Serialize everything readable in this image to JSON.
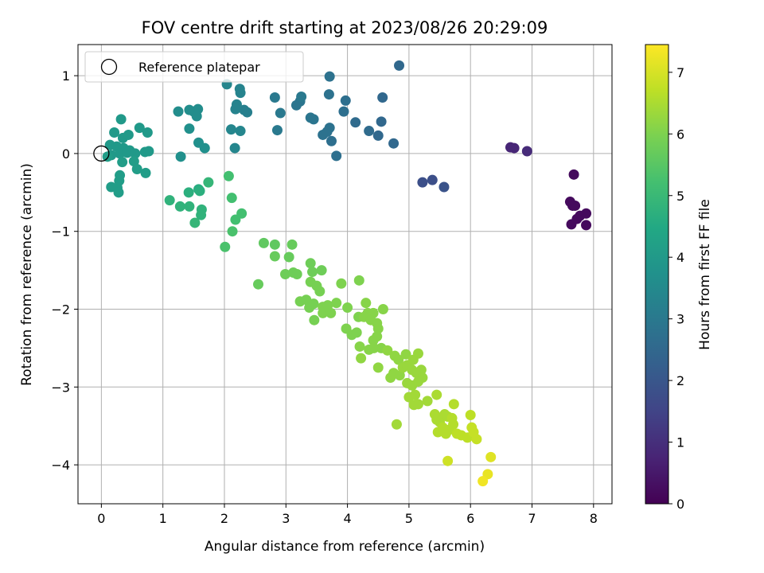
{
  "chart_data": {
    "type": "scatter",
    "title": "FOV centre drift starting at 2023/08/26 20:29:09",
    "xlabel": "Angular distance from reference (arcmin)",
    "ylabel": "Rotation from reference (arcmin)",
    "xlim": [
      -0.38,
      8.3
    ],
    "ylim": [
      -4.5,
      1.4
    ],
    "xticks": [
      0,
      1,
      2,
      3,
      4,
      5,
      6,
      7,
      8
    ],
    "yticks": [
      -4,
      -3,
      -2,
      -1,
      0,
      1
    ],
    "grid": true,
    "legend": {
      "placement": "top-left",
      "entries": [
        "Reference platepar"
      ]
    },
    "reference_point": {
      "x": 0,
      "y": 0
    },
    "colorbar": {
      "label": "Hours from first FF file",
      "colormap": "viridis",
      "range": [
        0,
        7.45
      ],
      "ticks": [
        0,
        1,
        2,
        3,
        4,
        5,
        6,
        7
      ]
    },
    "points": [
      {
        "x": 7.68,
        "y": -0.27,
        "c": 0.2
      },
      {
        "x": 7.62,
        "y": -0.62,
        "c": 0.2
      },
      {
        "x": 7.66,
        "y": -0.67,
        "c": 0.2
      },
      {
        "x": 7.7,
        "y": -0.67,
        "c": 0.2
      },
      {
        "x": 7.64,
        "y": -0.91,
        "c": 0.2
      },
      {
        "x": 7.78,
        "y": -0.8,
        "c": 0.2
      },
      {
        "x": 7.88,
        "y": -0.77,
        "c": 0.2
      },
      {
        "x": 7.73,
        "y": -0.84,
        "c": 0.2
      },
      {
        "x": 7.88,
        "y": -0.92,
        "c": 0.2
      },
      {
        "x": 6.65,
        "y": 0.08,
        "c": 0.8
      },
      {
        "x": 6.71,
        "y": 0.07,
        "c": 0.8
      },
      {
        "x": 6.92,
        "y": 0.03,
        "c": 0.9
      },
      {
        "x": 5.22,
        "y": -0.37,
        "c": 1.8
      },
      {
        "x": 5.38,
        "y": -0.34,
        "c": 1.8
      },
      {
        "x": 5.57,
        "y": -0.43,
        "c": 1.9
      },
      {
        "x": 4.84,
        "y": 1.13,
        "c": 2.5
      },
      {
        "x": 4.57,
        "y": 0.72,
        "c": 2.5
      },
      {
        "x": 4.55,
        "y": 0.41,
        "c": 2.5
      },
      {
        "x": 4.5,
        "y": 0.23,
        "c": 2.5
      },
      {
        "x": 4.75,
        "y": 0.13,
        "c": 2.5
      },
      {
        "x": 4.35,
        "y": 0.29,
        "c": 2.6
      },
      {
        "x": 4.13,
        "y": 0.4,
        "c": 2.6
      },
      {
        "x": 3.97,
        "y": 0.68,
        "c": 2.7
      },
      {
        "x": 3.94,
        "y": 0.54,
        "c": 2.7
      },
      {
        "x": 3.82,
        "y": -0.03,
        "c": 2.7
      },
      {
        "x": 3.74,
        "y": 0.16,
        "c": 2.7
      },
      {
        "x": 3.71,
        "y": 0.33,
        "c": 2.8
      },
      {
        "x": 3.7,
        "y": 0.76,
        "c": 2.8
      },
      {
        "x": 3.71,
        "y": 0.99,
        "c": 2.8
      },
      {
        "x": 3.6,
        "y": 0.24,
        "c": 2.8
      },
      {
        "x": 3.67,
        "y": 0.28,
        "c": 2.8
      },
      {
        "x": 3.45,
        "y": 0.44,
        "c": 2.9
      },
      {
        "x": 3.4,
        "y": 0.46,
        "c": 2.9
      },
      {
        "x": 3.23,
        "y": 0.67,
        "c": 2.9
      },
      {
        "x": 3.17,
        "y": 0.62,
        "c": 2.9
      },
      {
        "x": 3.25,
        "y": 0.73,
        "c": 3.0
      },
      {
        "x": 2.91,
        "y": 0.52,
        "c": 3.0
      },
      {
        "x": 2.86,
        "y": 0.3,
        "c": 3.0
      },
      {
        "x": 2.82,
        "y": 0.72,
        "c": 3.0
      },
      {
        "x": 2.37,
        "y": 0.53,
        "c": 3.2
      },
      {
        "x": 2.32,
        "y": 0.56,
        "c": 3.2
      },
      {
        "x": 2.25,
        "y": 0.83,
        "c": 3.3
      },
      {
        "x": 2.26,
        "y": 0.78,
        "c": 3.3
      },
      {
        "x": 2.2,
        "y": 0.63,
        "c": 3.3
      },
      {
        "x": 2.18,
        "y": 0.57,
        "c": 3.3
      },
      {
        "x": 2.26,
        "y": 0.29,
        "c": 3.4
      },
      {
        "x": 2.11,
        "y": 0.31,
        "c": 3.4
      },
      {
        "x": 2.17,
        "y": 0.07,
        "c": 3.4
      },
      {
        "x": 2.04,
        "y": 0.89,
        "c": 3.4
      },
      {
        "x": 1.57,
        "y": 0.57,
        "c": 3.6
      },
      {
        "x": 1.5,
        "y": 0.54,
        "c": 3.6
      },
      {
        "x": 1.43,
        "y": 0.56,
        "c": 3.6
      },
      {
        "x": 1.55,
        "y": 0.48,
        "c": 3.6
      },
      {
        "x": 1.25,
        "y": 0.54,
        "c": 3.6
      },
      {
        "x": 1.43,
        "y": 0.32,
        "c": 3.7
      },
      {
        "x": 1.58,
        "y": 0.14,
        "c": 3.7
      },
      {
        "x": 1.68,
        "y": 0.07,
        "c": 3.7
      },
      {
        "x": 1.29,
        "y": -0.04,
        "c": 3.7
      },
      {
        "x": 0.32,
        "y": 0.44,
        "c": 4.0
      },
      {
        "x": 0.21,
        "y": 0.27,
        "c": 4.0
      },
      {
        "x": 0.35,
        "y": 0.2,
        "c": 4.0
      },
      {
        "x": 0.44,
        "y": 0.24,
        "c": 4.0
      },
      {
        "x": 0.62,
        "y": 0.33,
        "c": 4.0
      },
      {
        "x": 0.75,
        "y": 0.27,
        "c": 4.0
      },
      {
        "x": 0.14,
        "y": 0.11,
        "c": 4.0
      },
      {
        "x": 0.25,
        "y": 0.09,
        "c": 4.0
      },
      {
        "x": 0.36,
        "y": 0.07,
        "c": 4.0
      },
      {
        "x": 0.46,
        "y": 0.04,
        "c": 4.0
      },
      {
        "x": 0.16,
        "y": -0.02,
        "c": 4.0
      },
      {
        "x": 0.3,
        "y": 0.0,
        "c": 4.0
      },
      {
        "x": 0.42,
        "y": 0.01,
        "c": 4.0
      },
      {
        "x": 0.55,
        "y": 0.0,
        "c": 4.0
      },
      {
        "x": 0.71,
        "y": 0.02,
        "c": 4.0
      },
      {
        "x": 0.77,
        "y": 0.03,
        "c": 4.0
      },
      {
        "x": 0.1,
        "y": -0.04,
        "c": 4.1
      },
      {
        "x": 0.34,
        "y": -0.11,
        "c": 4.1
      },
      {
        "x": 0.53,
        "y": -0.1,
        "c": 4.1
      },
      {
        "x": 0.58,
        "y": -0.2,
        "c": 4.1
      },
      {
        "x": 0.72,
        "y": -0.25,
        "c": 4.1
      },
      {
        "x": 0.3,
        "y": -0.28,
        "c": 4.1
      },
      {
        "x": 0.29,
        "y": -0.35,
        "c": 4.1
      },
      {
        "x": 0.16,
        "y": -0.43,
        "c": 4.1
      },
      {
        "x": 0.26,
        "y": -0.44,
        "c": 4.1
      },
      {
        "x": 0.28,
        "y": -0.5,
        "c": 4.1
      },
      {
        "x": 1.58,
        "y": -0.46,
        "c": 4.6
      },
      {
        "x": 1.42,
        "y": -0.5,
        "c": 4.7
      },
      {
        "x": 1.6,
        "y": -0.48,
        "c": 4.7
      },
      {
        "x": 1.11,
        "y": -0.6,
        "c": 4.8
      },
      {
        "x": 1.28,
        "y": -0.68,
        "c": 4.8
      },
      {
        "x": 1.43,
        "y": -0.68,
        "c": 4.8
      },
      {
        "x": 1.63,
        "y": -0.72,
        "c": 4.8
      },
      {
        "x": 1.62,
        "y": -0.79,
        "c": 4.8
      },
      {
        "x": 1.52,
        "y": -0.89,
        "c": 4.9
      },
      {
        "x": 1.74,
        "y": -0.37,
        "c": 4.9
      },
      {
        "x": 2.07,
        "y": -0.29,
        "c": 5.2
      },
      {
        "x": 2.12,
        "y": -0.57,
        "c": 5.2
      },
      {
        "x": 2.28,
        "y": -0.77,
        "c": 5.2
      },
      {
        "x": 2.18,
        "y": -0.85,
        "c": 5.2
      },
      {
        "x": 2.13,
        "y": -1.0,
        "c": 5.3
      },
      {
        "x": 2.01,
        "y": -1.2,
        "c": 5.3
      },
      {
        "x": 2.64,
        "y": -1.15,
        "c": 5.6
      },
      {
        "x": 2.82,
        "y": -1.17,
        "c": 5.6
      },
      {
        "x": 2.82,
        "y": -1.32,
        "c": 5.7
      },
      {
        "x": 3.1,
        "y": -1.17,
        "c": 5.7
      },
      {
        "x": 3.05,
        "y": -1.33,
        "c": 5.7
      },
      {
        "x": 2.55,
        "y": -1.68,
        "c": 5.7
      },
      {
        "x": 2.99,
        "y": -1.55,
        "c": 5.8
      },
      {
        "x": 3.12,
        "y": -1.53,
        "c": 5.8
      },
      {
        "x": 3.18,
        "y": -1.55,
        "c": 5.8
      },
      {
        "x": 3.4,
        "y": -1.41,
        "c": 5.8
      },
      {
        "x": 3.43,
        "y": -1.52,
        "c": 5.8
      },
      {
        "x": 3.58,
        "y": -1.5,
        "c": 5.8
      },
      {
        "x": 3.4,
        "y": -1.65,
        "c": 5.9
      },
      {
        "x": 3.5,
        "y": -1.7,
        "c": 5.9
      },
      {
        "x": 3.55,
        "y": -1.77,
        "c": 5.9
      },
      {
        "x": 3.23,
        "y": -1.9,
        "c": 5.9
      },
      {
        "x": 3.33,
        "y": -1.88,
        "c": 5.9
      },
      {
        "x": 3.38,
        "y": -1.98,
        "c": 5.9
      },
      {
        "x": 3.45,
        "y": -1.93,
        "c": 5.9
      },
      {
        "x": 3.46,
        "y": -2.14,
        "c": 5.9
      },
      {
        "x": 3.6,
        "y": -2.05,
        "c": 6.0
      },
      {
        "x": 3.6,
        "y": -1.97,
        "c": 6.0
      },
      {
        "x": 3.68,
        "y": -1.95,
        "c": 6.0
      },
      {
        "x": 3.73,
        "y": -2.05,
        "c": 6.0
      },
      {
        "x": 3.82,
        "y": -1.92,
        "c": 6.0
      },
      {
        "x": 3.9,
        "y": -1.67,
        "c": 6.0
      },
      {
        "x": 4.19,
        "y": -1.63,
        "c": 6.0
      },
      {
        "x": 4.0,
        "y": -1.98,
        "c": 6.0
      },
      {
        "x": 3.98,
        "y": -2.25,
        "c": 6.0
      },
      {
        "x": 4.07,
        "y": -2.33,
        "c": 6.0
      },
      {
        "x": 4.15,
        "y": -2.3,
        "c": 6.0
      },
      {
        "x": 4.18,
        "y": -2.1,
        "c": 6.0
      },
      {
        "x": 4.3,
        "y": -1.92,
        "c": 6.1
      },
      {
        "x": 4.33,
        "y": -2.05,
        "c": 6.1
      },
      {
        "x": 4.27,
        "y": -2.1,
        "c": 6.1
      },
      {
        "x": 4.42,
        "y": -2.05,
        "c": 6.1
      },
      {
        "x": 4.38,
        "y": -2.14,
        "c": 6.1
      },
      {
        "x": 4.48,
        "y": -2.18,
        "c": 6.1
      },
      {
        "x": 4.58,
        "y": -2.0,
        "c": 6.1
      },
      {
        "x": 4.5,
        "y": -2.25,
        "c": 6.1
      },
      {
        "x": 4.48,
        "y": -2.35,
        "c": 6.1
      },
      {
        "x": 4.42,
        "y": -2.4,
        "c": 6.1
      },
      {
        "x": 4.2,
        "y": -2.48,
        "c": 6.1
      },
      {
        "x": 4.35,
        "y": -2.52,
        "c": 6.1
      },
      {
        "x": 4.43,
        "y": -2.5,
        "c": 6.1
      },
      {
        "x": 4.55,
        "y": -2.5,
        "c": 6.1
      },
      {
        "x": 4.65,
        "y": -2.53,
        "c": 6.2
      },
      {
        "x": 4.22,
        "y": -2.63,
        "c": 6.2
      },
      {
        "x": 4.5,
        "y": -2.75,
        "c": 6.2
      },
      {
        "x": 4.77,
        "y": -2.6,
        "c": 6.2
      },
      {
        "x": 4.83,
        "y": -2.65,
        "c": 6.2
      },
      {
        "x": 4.95,
        "y": -2.58,
        "c": 6.2
      },
      {
        "x": 4.7,
        "y": -2.88,
        "c": 6.2
      },
      {
        "x": 4.75,
        "y": -2.82,
        "c": 6.2
      },
      {
        "x": 4.85,
        "y": -2.85,
        "c": 6.2
      },
      {
        "x": 4.9,
        "y": -2.75,
        "c": 6.3
      },
      {
        "x": 4.97,
        "y": -2.72,
        "c": 6.3
      },
      {
        "x": 5.07,
        "y": -2.65,
        "c": 6.3
      },
      {
        "x": 5.15,
        "y": -2.57,
        "c": 6.3
      },
      {
        "x": 5.05,
        "y": -2.78,
        "c": 6.3
      },
      {
        "x": 5.12,
        "y": -2.82,
        "c": 6.3
      },
      {
        "x": 5.2,
        "y": -2.78,
        "c": 6.3
      },
      {
        "x": 5.22,
        "y": -2.88,
        "c": 6.3
      },
      {
        "x": 4.97,
        "y": -2.95,
        "c": 6.3
      },
      {
        "x": 5.05,
        "y": -2.98,
        "c": 6.3
      },
      {
        "x": 5.15,
        "y": -2.93,
        "c": 6.3
      },
      {
        "x": 5.0,
        "y": -3.13,
        "c": 6.4
      },
      {
        "x": 5.1,
        "y": -3.1,
        "c": 6.4
      },
      {
        "x": 5.08,
        "y": -3.23,
        "c": 6.4
      },
      {
        "x": 5.15,
        "y": -3.22,
        "c": 6.4
      },
      {
        "x": 5.3,
        "y": -3.18,
        "c": 6.4
      },
      {
        "x": 4.8,
        "y": -3.48,
        "c": 6.4
      },
      {
        "x": 5.45,
        "y": -3.1,
        "c": 6.5
      },
      {
        "x": 5.42,
        "y": -3.35,
        "c": 6.5
      },
      {
        "x": 5.45,
        "y": -3.42,
        "c": 6.5
      },
      {
        "x": 5.5,
        "y": -3.45,
        "c": 6.5
      },
      {
        "x": 5.58,
        "y": -3.35,
        "c": 6.5
      },
      {
        "x": 5.63,
        "y": -3.38,
        "c": 6.5
      },
      {
        "x": 5.7,
        "y": -3.4,
        "c": 6.6
      },
      {
        "x": 5.73,
        "y": -3.22,
        "c": 6.6
      },
      {
        "x": 5.47,
        "y": -3.58,
        "c": 6.6
      },
      {
        "x": 5.55,
        "y": -3.52,
        "c": 6.6
      },
      {
        "x": 5.6,
        "y": -3.6,
        "c": 6.6
      },
      {
        "x": 5.65,
        "y": -3.55,
        "c": 6.6
      },
      {
        "x": 5.72,
        "y": -3.48,
        "c": 6.6
      },
      {
        "x": 5.78,
        "y": -3.6,
        "c": 6.7
      },
      {
        "x": 5.85,
        "y": -3.62,
        "c": 6.7
      },
      {
        "x": 5.95,
        "y": -3.65,
        "c": 6.7
      },
      {
        "x": 6.0,
        "y": -3.36,
        "c": 6.7
      },
      {
        "x": 6.02,
        "y": -3.52,
        "c": 6.8
      },
      {
        "x": 6.05,
        "y": -3.58,
        "c": 6.8
      },
      {
        "x": 6.1,
        "y": -3.67,
        "c": 6.8
      },
      {
        "x": 5.63,
        "y": -3.95,
        "c": 6.9
      },
      {
        "x": 6.33,
        "y": -3.9,
        "c": 7.1
      },
      {
        "x": 6.28,
        "y": -4.12,
        "c": 7.2
      },
      {
        "x": 6.2,
        "y": -4.21,
        "c": 7.3
      }
    ]
  }
}
